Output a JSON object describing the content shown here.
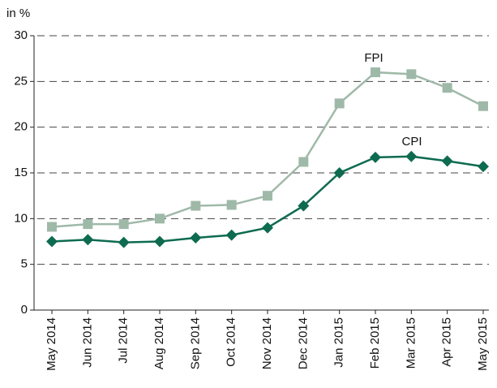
{
  "chart_data": {
    "type": "line",
    "y_axis_label": "in %",
    "categories": [
      "May 2014",
      "Jun 2014",
      "Jul 2014",
      "Aug 2014",
      "Sep 2014",
      "Oct 2014",
      "Nov 2014",
      "Dec 2014",
      "Jan 2015",
      "Feb 2015",
      "Mar 2015",
      "Apr 2015",
      "May 2015"
    ],
    "series": [
      {
        "name": "FPI",
        "color": "#9fb9a9",
        "marker": "square",
        "values": [
          9.1,
          9.4,
          9.4,
          10.0,
          11.4,
          11.5,
          12.5,
          16.2,
          22.6,
          26.0,
          25.8,
          24.3,
          22.3
        ]
      },
      {
        "name": "CPI",
        "color": "#0e6b50",
        "marker": "diamond",
        "values": [
          7.5,
          7.7,
          7.4,
          7.5,
          7.9,
          8.2,
          9.0,
          11.4,
          15.0,
          16.7,
          16.8,
          16.3,
          15.7
        ]
      }
    ],
    "ylim": [
      0,
      30
    ],
    "yticks": [
      0,
      5,
      10,
      15,
      20,
      25,
      30
    ],
    "grid": true
  }
}
